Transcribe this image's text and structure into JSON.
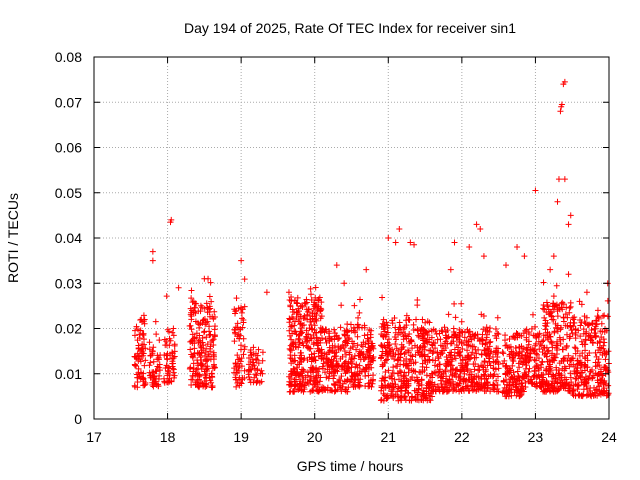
{
  "chart_data": {
    "type": "scatter",
    "title": "Day 194 of 2025, Rate Of TEC Index for receiver sin1",
    "xlabel": "GPS time / hours",
    "ylabel": "ROTI / TECUs",
    "xlim": [
      17,
      24
    ],
    "ylim": [
      0,
      0.08
    ],
    "xticks": [
      "17",
      "18",
      "19",
      "20",
      "21",
      "22",
      "23",
      "24"
    ],
    "yticks": [
      "0",
      "0.01",
      "0.02",
      "0.03",
      "0.04",
      "0.05",
      "0.06",
      "0.07",
      "0.08"
    ],
    "grid": true,
    "marker": "+",
    "color": "#ff0000",
    "clusters": [
      {
        "x": [
          17.55,
          17.7
        ],
        "base": [
          0.007,
          0.022
        ],
        "n": 70
      },
      {
        "x": [
          17.75,
          17.9
        ],
        "base": [
          0.007,
          0.018
        ],
        "n": 50
      },
      {
        "x": [
          17.95,
          18.1
        ],
        "base": [
          0.008,
          0.02
        ],
        "n": 55
      },
      {
        "x": [
          18.3,
          18.65
        ],
        "base": [
          0.007,
          0.026
        ],
        "n": 200
      },
      {
        "x": [
          18.9,
          19.05
        ],
        "base": [
          0.007,
          0.025
        ],
        "n": 70
      },
      {
        "x": [
          19.1,
          19.3
        ],
        "base": [
          0.008,
          0.016
        ],
        "n": 45
      },
      {
        "x": [
          19.65,
          20.1
        ],
        "base": [
          0.006,
          0.027
        ],
        "n": 320
      },
      {
        "x": [
          20.1,
          20.45
        ],
        "base": [
          0.006,
          0.02
        ],
        "n": 170
      },
      {
        "x": [
          20.45,
          20.8
        ],
        "base": [
          0.007,
          0.021
        ],
        "n": 150
      },
      {
        "x": [
          20.9,
          21.6
        ],
        "base": [
          0.004,
          0.022
        ],
        "n": 380
      },
      {
        "x": [
          21.6,
          22.5
        ],
        "base": [
          0.006,
          0.02
        ],
        "n": 420
      },
      {
        "x": [
          22.55,
          22.85
        ],
        "base": [
          0.005,
          0.019
        ],
        "n": 150
      },
      {
        "x": [
          22.85,
          23.1
        ],
        "base": [
          0.007,
          0.02
        ],
        "n": 110
      },
      {
        "x": [
          23.1,
          23.5
        ],
        "base": [
          0.006,
          0.026
        ],
        "n": 240
      },
      {
        "x": [
          23.5,
          24.0
        ],
        "base": [
          0.005,
          0.023
        ],
        "n": 260
      }
    ],
    "outliers": [
      {
        "x": 17.8,
        "y": 0.037
      },
      {
        "x": 17.8,
        "y": 0.035
      },
      {
        "x": 18.05,
        "y": 0.044
      },
      {
        "x": 18.04,
        "y": 0.0435
      },
      {
        "x": 18.15,
        "y": 0.029
      },
      {
        "x": 18.5,
        "y": 0.031
      },
      {
        "x": 18.55,
        "y": 0.031
      },
      {
        "x": 19.0,
        "y": 0.035
      },
      {
        "x": 19.35,
        "y": 0.028
      },
      {
        "x": 19.65,
        "y": 0.028
      },
      {
        "x": 20.3,
        "y": 0.034
      },
      {
        "x": 20.4,
        "y": 0.03
      },
      {
        "x": 20.7,
        "y": 0.033
      },
      {
        "x": 21.0,
        "y": 0.04
      },
      {
        "x": 21.1,
        "y": 0.039
      },
      {
        "x": 21.15,
        "y": 0.042
      },
      {
        "x": 21.3,
        "y": 0.039
      },
      {
        "x": 21.35,
        "y": 0.0385
      },
      {
        "x": 21.9,
        "y": 0.039
      },
      {
        "x": 21.85,
        "y": 0.033
      },
      {
        "x": 22.1,
        "y": 0.038
      },
      {
        "x": 22.2,
        "y": 0.043
      },
      {
        "x": 22.25,
        "y": 0.042
      },
      {
        "x": 22.3,
        "y": 0.036
      },
      {
        "x": 22.6,
        "y": 0.034
      },
      {
        "x": 22.75,
        "y": 0.038
      },
      {
        "x": 22.85,
        "y": 0.036
      },
      {
        "x": 23.0,
        "y": 0.0505
      },
      {
        "x": 23.2,
        "y": 0.033
      },
      {
        "x": 23.25,
        "y": 0.036
      },
      {
        "x": 23.3,
        "y": 0.048
      },
      {
        "x": 23.32,
        "y": 0.053
      },
      {
        "x": 23.35,
        "y": 0.069
      },
      {
        "x": 23.36,
        "y": 0.0695
      },
      {
        "x": 23.34,
        "y": 0.068
      },
      {
        "x": 23.38,
        "y": 0.074
      },
      {
        "x": 23.4,
        "y": 0.0745
      },
      {
        "x": 23.4,
        "y": 0.053
      },
      {
        "x": 23.45,
        "y": 0.043
      },
      {
        "x": 23.48,
        "y": 0.045
      },
      {
        "x": 23.45,
        "y": 0.032
      },
      {
        "x": 23.6,
        "y": 0.026
      },
      {
        "x": 23.7,
        "y": 0.028
      },
      {
        "x": 23.85,
        "y": 0.024
      }
    ]
  }
}
